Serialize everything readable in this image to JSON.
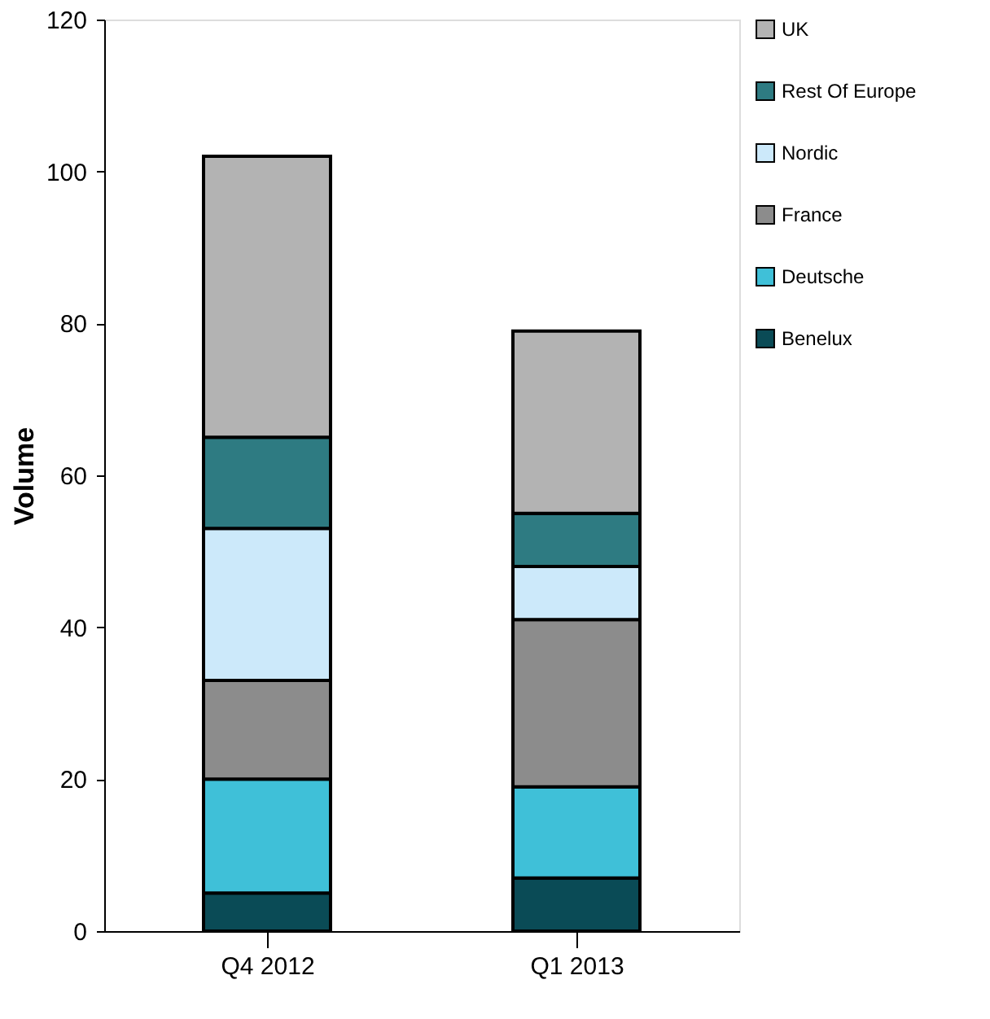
{
  "chart_data": {
    "type": "bar",
    "stacked": true,
    "ylabel": "Volume",
    "categories": [
      "Q4 2012",
      "Q1 2013"
    ],
    "series": [
      {
        "name": "Benelux",
        "color": "#0a4b56",
        "values": [
          5,
          7
        ]
      },
      {
        "name": "Deutsche",
        "color": "#3fc0d8",
        "values": [
          15,
          12
        ]
      },
      {
        "name": "France",
        "color": "#8c8c8c",
        "values": [
          13,
          22
        ]
      },
      {
        "name": "Nordic",
        "color": "#cce9fa",
        "values": [
          20,
          7
        ]
      },
      {
        "name": "Rest Of Europe",
        "color": "#2e7b82",
        "values": [
          12,
          7
        ]
      },
      {
        "name": "UK",
        "color": "#b3b3b3",
        "values": [
          37,
          24
        ]
      }
    ],
    "ylim": [
      0,
      120
    ],
    "yticks": [
      0,
      20,
      40,
      60,
      80,
      100,
      120
    ],
    "grid": false,
    "legend": "right"
  }
}
